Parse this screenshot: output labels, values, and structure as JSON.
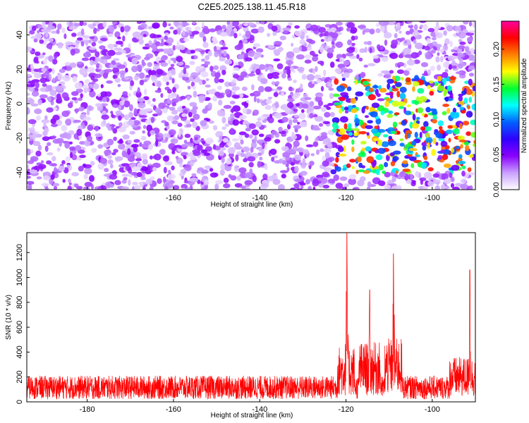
{
  "title": "C2E5.2025.138.11.45.R18",
  "chart_data": [
    {
      "type": "heatmap",
      "title": "C2E5.2025.138.11.45.R18",
      "xlabel": "Height of straight line (km)",
      "ylabel": "Frequency (Hz)",
      "xlim": [
        -194,
        -90
      ],
      "ylim": [
        -50,
        48
      ],
      "x_ticks": [
        -180,
        -160,
        -140,
        -120,
        -100
      ],
      "y_ticks": [
        -40,
        -20,
        0,
        20,
        40
      ],
      "colorbar": {
        "label": "Normalized spectral amplitude",
        "range": [
          0,
          0.24
        ],
        "ticks": [
          "0.00",
          "0.05",
          "0.10",
          "0.15",
          "0.20"
        ],
        "tick_values": [
          0,
          0.05,
          0.1,
          0.15,
          0.2
        ],
        "colors": [
          "#ffffff",
          "#c9a0ff",
          "#8a00ff",
          "#3000ff",
          "#0060ff",
          "#00ffff",
          "#00ff30",
          "#ffff00",
          "#ff8000",
          "#ff0000",
          "#ff00a0"
        ]
      },
      "background_mean_amplitude": 0.03,
      "features": [
        {
          "x_range": [
            -122,
            -118
          ],
          "y_range": [
            -50,
            48
          ],
          "amplitude": 0.0,
          "note": "gap"
        },
        {
          "x_range": [
            -112,
            -108
          ],
          "y_range": [
            -50,
            48
          ],
          "amplitude": 0.0,
          "note": "gap"
        },
        {
          "x_range": [
            -123,
            -90
          ],
          "y_range": [
            -40,
            15
          ],
          "amplitude": 0.14
        }
      ]
    },
    {
      "type": "line",
      "xlabel": "Height of straight line (km)",
      "ylabel": "SNR (10 * v/v)",
      "xlim": [
        -194,
        -90
      ],
      "ylim": [
        0,
        1360
      ],
      "x_ticks": [
        -180,
        -160,
        -140,
        -120,
        -100
      ],
      "y_ticks": [
        0,
        200,
        400,
        600,
        800,
        1000,
        1200
      ],
      "baseline_mean": 140,
      "peaks": [
        {
          "x": -119.8,
          "y": 1360
        },
        {
          "x": -114.5,
          "y": 900
        },
        {
          "x": -109,
          "y": 1190
        },
        {
          "x": -91.3,
          "y": 1060
        }
      ],
      "color": "#ff0000"
    }
  ]
}
